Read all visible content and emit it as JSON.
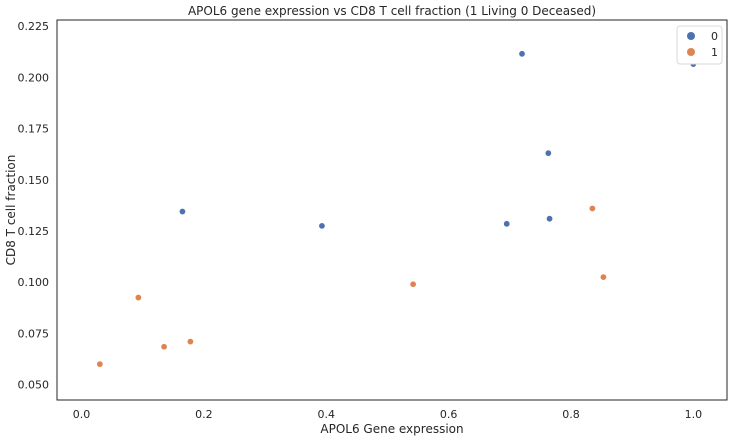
{
  "chart_data": {
    "type": "scatter",
    "title": "APOL6 gene expression vs CD8 T cell fraction (1 Living 0 Deceased)",
    "xlabel": "APOL6 Gene expression",
    "ylabel": "CD8 T cell fraction",
    "xlim": [
      -0.04,
      1.055
    ],
    "ylim": [
      0.0425,
      0.228
    ],
    "x_ticks": [
      0.0,
      0.2,
      0.4,
      0.6,
      0.8,
      1.0
    ],
    "x_tick_labels": [
      "0.0",
      "0.2",
      "0.4",
      "0.6",
      "0.8",
      "1.0"
    ],
    "y_ticks": [
      0.05,
      0.075,
      0.1,
      0.125,
      0.15,
      0.175,
      0.2,
      0.225
    ],
    "y_tick_labels": [
      "0.050",
      "0.075",
      "0.100",
      "0.125",
      "0.150",
      "0.175",
      "0.200",
      "0.225"
    ],
    "grid": false,
    "legend_position": "top-right",
    "series": [
      {
        "name": "0",
        "color": "#4c72b0",
        "points": [
          {
            "x": 0.165,
            "y": 0.1345
          },
          {
            "x": 0.393,
            "y": 0.1275
          },
          {
            "x": 0.695,
            "y": 0.1285
          },
          {
            "x": 0.72,
            "y": 0.2115
          },
          {
            "x": 0.763,
            "y": 0.163
          },
          {
            "x": 0.765,
            "y": 0.131
          },
          {
            "x": 1.0,
            "y": 0.2065
          }
        ]
      },
      {
        "name": "1",
        "color": "#dd8452",
        "points": [
          {
            "x": 0.03,
            "y": 0.06
          },
          {
            "x": 0.093,
            "y": 0.0925
          },
          {
            "x": 0.135,
            "y": 0.0685
          },
          {
            "x": 0.178,
            "y": 0.071
          },
          {
            "x": 0.542,
            "y": 0.099
          },
          {
            "x": 0.835,
            "y": 0.136
          },
          {
            "x": 0.853,
            "y": 0.1025
          }
        ]
      }
    ]
  }
}
